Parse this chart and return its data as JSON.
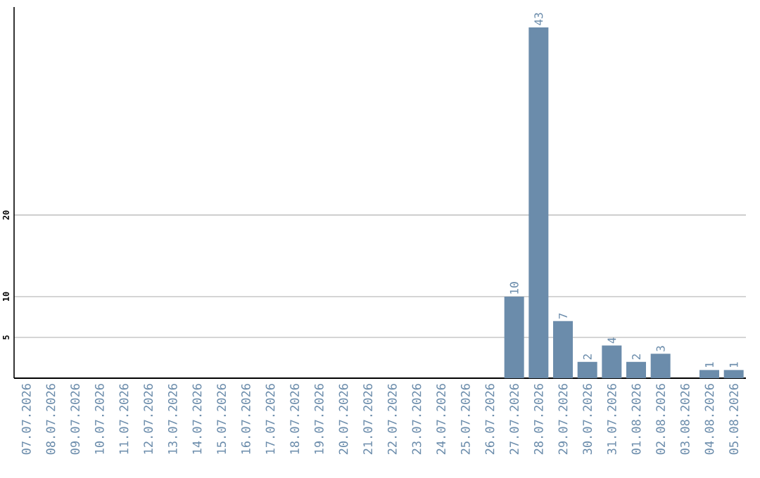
{
  "chart_data": {
    "type": "bar",
    "categories": [
      "07.07.2026",
      "08.07.2026",
      "09.07.2026",
      "10.07.2026",
      "11.07.2026",
      "12.07.2026",
      "13.07.2026",
      "14.07.2026",
      "15.07.2026",
      "16.07.2026",
      "17.07.2026",
      "18.07.2026",
      "19.07.2026",
      "20.07.2026",
      "21.07.2026",
      "22.07.2026",
      "23.07.2026",
      "24.07.2026",
      "25.07.2026",
      "26.07.2026",
      "27.07.2026",
      "28.07.2026",
      "29.07.2026",
      "30.07.2026",
      "31.07.2026",
      "01.08.2026",
      "02.08.2026",
      "03.08.2026",
      "04.08.2026",
      "05.08.2026"
    ],
    "values": [
      0,
      0,
      0,
      0,
      0,
      0,
      0,
      0,
      0,
      0,
      0,
      0,
      0,
      0,
      0,
      0,
      0,
      0,
      0,
      0,
      10,
      43,
      7,
      2,
      4,
      2,
      3,
      0,
      1,
      1
    ],
    "value_labels": [
      null,
      null,
      null,
      null,
      null,
      null,
      null,
      null,
      null,
      null,
      null,
      null,
      null,
      null,
      null,
      null,
      null,
      null,
      null,
      null,
      "10",
      "43",
      "7",
      "2",
      "4",
      "2",
      "3",
      null,
      "1",
      "1"
    ],
    "color": "#6b8cab",
    "ylim": [
      0,
      45.5
    ],
    "yticks": [
      5,
      10,
      20
    ],
    "grid": "y"
  }
}
